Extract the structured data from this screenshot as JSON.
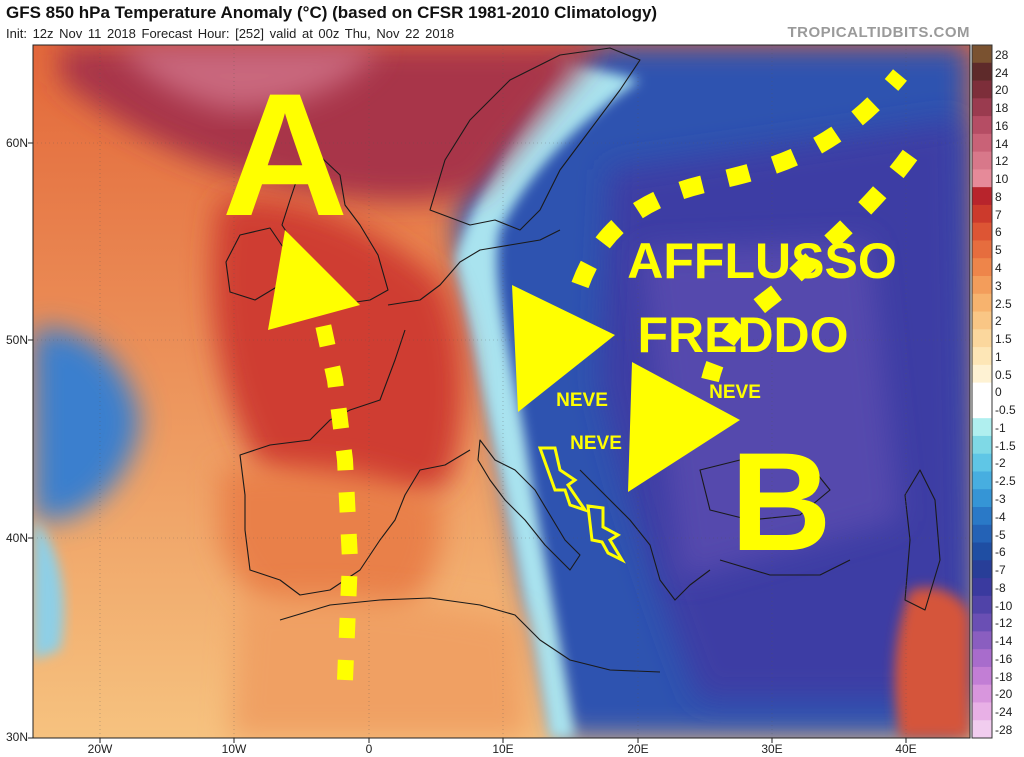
{
  "header": {
    "title": "GFS 850 hPa Temperature Anomaly (°C) (based on CFSR 1981-2010 Climatology)",
    "subtitle": "Init: 12z Nov 11 2018   Forecast Hour: [252]   valid at 00z Thu, Nov 22 2018",
    "brand": "TROPICALTIDBITS.COM"
  },
  "axes": {
    "lat_labels": [
      "60N",
      "50N",
      "40N",
      "30N"
    ],
    "lon_labels": [
      "20W",
      "10W",
      "0",
      "10E",
      "20E",
      "30E",
      "40E"
    ]
  },
  "colorbar": {
    "labels": [
      "28",
      "24",
      "20",
      "18",
      "16",
      "14",
      "12",
      "10",
      "8",
      "7",
      "6",
      "5",
      "4",
      "3",
      "2.5",
      "2",
      "1.5",
      "1",
      "0.5",
      "0",
      "-0.5",
      "-1",
      "-1.5",
      "-2",
      "-2.5",
      "-3",
      "-4",
      "-5",
      "-6",
      "-7",
      "-8",
      "-10",
      "-12",
      "-14",
      "-16",
      "-18",
      "-20",
      "-24",
      "-28"
    ],
    "colors": [
      "#7a5230",
      "#5e2a2a",
      "#7d2e3a",
      "#9a3b4f",
      "#b54d64",
      "#c96277",
      "#d8788a",
      "#e68a99",
      "#b8242c",
      "#cc3a2c",
      "#dd5534",
      "#e66d3e",
      "#ee854a",
      "#f39d5b",
      "#f7b36e",
      "#f9c685",
      "#fbd79d",
      "#fde6b6",
      "#fef2d3",
      "#ffffff",
      "#ffffff",
      "#b0efef",
      "#7fd9e6",
      "#5fc6e6",
      "#47aee0",
      "#3595d6",
      "#2a79c7",
      "#2462b6",
      "#1f4ea3",
      "#283e98",
      "#3a3a9f",
      "#5043a8",
      "#6a4fb4",
      "#8a5ec0",
      "#a86ccc",
      "#c27ed5",
      "#d896dd",
      "#e8b0e6",
      "#f1cdef"
    ]
  },
  "annotations": {
    "high_letter": "A",
    "low_letter": "B",
    "flow_line1": "AFFLUSSO",
    "flow_line2": "FREDDO",
    "snow_label": "NEVE"
  },
  "colors": {
    "annotation_yellow": "#ffff00"
  }
}
